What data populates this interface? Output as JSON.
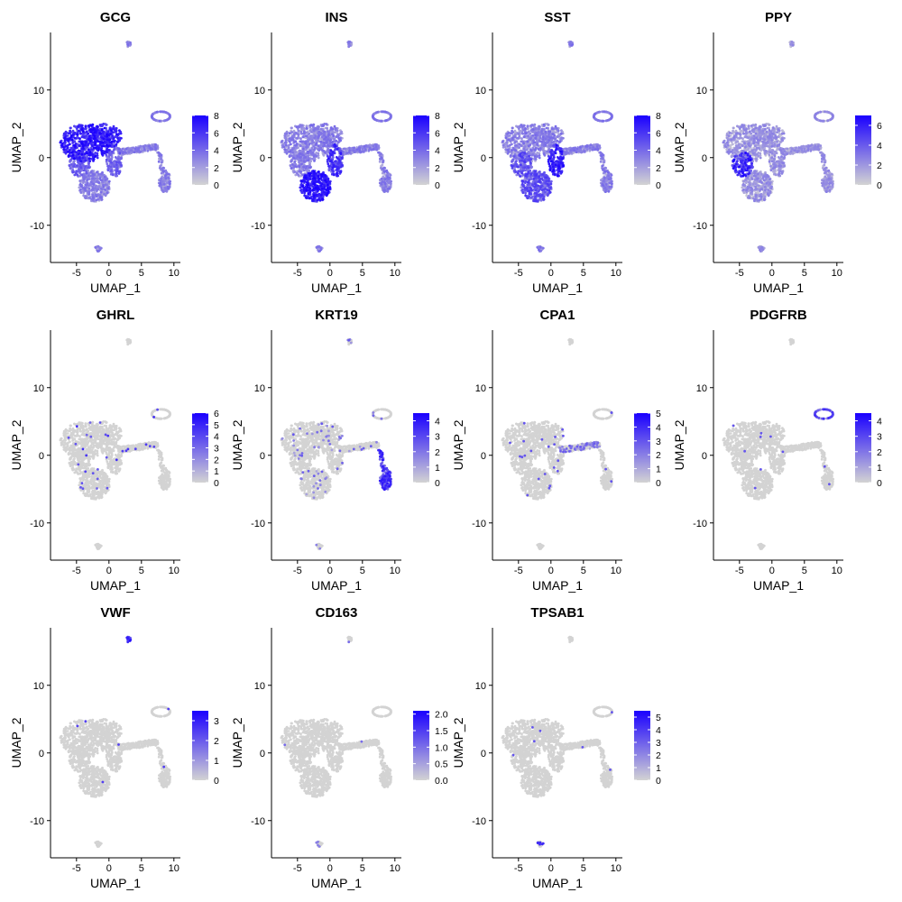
{
  "colors": {
    "low": "#d3d3d3",
    "high": "#1a00ff",
    "axis": "#000000"
  },
  "chart_data": [
    {
      "type": "scatter",
      "title": "GCG",
      "xlabel": "UMAP_1",
      "ylabel": "UMAP_2",
      "xlim": [
        -9,
        11
      ],
      "ylim": [
        -15.5,
        18.5
      ],
      "xticks": [
        -5,
        0,
        5,
        10
      ],
      "yticks": [
        -10,
        0,
        10
      ],
      "legend": {
        "max": 8,
        "ticks": [
          0,
          2,
          4,
          6,
          8
        ],
        "labels": [
          "0",
          "2",
          "4",
          "6",
          "8"
        ],
        "placement": "right"
      },
      "pattern": "gcg"
    },
    {
      "type": "scatter",
      "title": "INS",
      "xlabel": "UMAP_1",
      "ylabel": "UMAP_2",
      "xlim": [
        -9,
        11
      ],
      "ylim": [
        -15.5,
        18.5
      ],
      "xticks": [
        -5,
        0,
        5,
        10
      ],
      "yticks": [
        -10,
        0,
        10
      ],
      "legend": {
        "max": 8,
        "ticks": [
          0,
          2,
          4,
          6,
          8
        ],
        "labels": [
          "0",
          "2",
          "4",
          "6",
          "8"
        ],
        "placement": "right"
      },
      "pattern": "ins"
    },
    {
      "type": "scatter",
      "title": "SST",
      "xlabel": "UMAP_1",
      "ylabel": "UMAP_2",
      "xlim": [
        -9,
        11
      ],
      "ylim": [
        -15.5,
        18.5
      ],
      "xticks": [
        -5,
        0,
        5,
        10
      ],
      "yticks": [
        -10,
        0,
        10
      ],
      "legend": {
        "max": 8,
        "ticks": [
          0,
          2,
          4,
          6,
          8
        ],
        "labels": [
          "0",
          "2",
          "4",
          "6",
          "8"
        ],
        "placement": "right"
      },
      "pattern": "sst"
    },
    {
      "type": "scatter",
      "title": "PPY",
      "xlabel": "UMAP_1",
      "ylabel": "UMAP_2",
      "xlim": [
        -9,
        11
      ],
      "ylim": [
        -15.5,
        18.5
      ],
      "xticks": [
        -5,
        0,
        5,
        10
      ],
      "yticks": [
        -10,
        0,
        10
      ],
      "legend": {
        "max": 7,
        "ticks": [
          0,
          2,
          4,
          6
        ],
        "labels": [
          "0",
          "2",
          "4",
          "6"
        ],
        "placement": "right"
      },
      "pattern": "ppy"
    },
    {
      "type": "scatter",
      "title": "GHRL",
      "xlabel": "UMAP_1",
      "ylabel": "UMAP_2",
      "xlim": [
        -9,
        11
      ],
      "ylim": [
        -15.5,
        18.5
      ],
      "xticks": [
        -5,
        0,
        5,
        10
      ],
      "yticks": [
        -10,
        0,
        10
      ],
      "legend": {
        "max": 6,
        "ticks": [
          0,
          1,
          2,
          3,
          4,
          5,
          6
        ],
        "labels": [
          "0",
          "1",
          "2",
          "3",
          "4",
          "5",
          "6"
        ],
        "placement": "right"
      },
      "pattern": "ghrl"
    },
    {
      "type": "scatter",
      "title": "KRT19",
      "xlabel": "UMAP_1",
      "ylabel": "UMAP_2",
      "xlim": [
        -9,
        11
      ],
      "ylim": [
        -15.5,
        18.5
      ],
      "xticks": [
        -5,
        0,
        5,
        10
      ],
      "yticks": [
        -10,
        0,
        10
      ],
      "legend": {
        "max": 4.5,
        "ticks": [
          0,
          1,
          2,
          3,
          4
        ],
        "labels": [
          "0",
          "1",
          "2",
          "3",
          "4"
        ],
        "placement": "right"
      },
      "pattern": "krt19"
    },
    {
      "type": "scatter",
      "title": "CPA1",
      "xlabel": "UMAP_1",
      "ylabel": "UMAP_2",
      "xlim": [
        -9,
        11
      ],
      "ylim": [
        -15.5,
        18.5
      ],
      "xticks": [
        -5,
        0,
        5,
        10
      ],
      "yticks": [
        -10,
        0,
        10
      ],
      "legend": {
        "max": 5,
        "ticks": [
          0,
          1,
          2,
          3,
          4,
          5
        ],
        "labels": [
          "0",
          "1",
          "2",
          "3",
          "4",
          "5"
        ],
        "placement": "right"
      },
      "pattern": "cpa1"
    },
    {
      "type": "scatter",
      "title": "PDGFRB",
      "xlabel": "UMAP_1",
      "ylabel": "UMAP_2",
      "xlim": [
        -9,
        11
      ],
      "ylim": [
        -15.5,
        18.5
      ],
      "xticks": [
        -5,
        0,
        5,
        10
      ],
      "yticks": [
        -10,
        0,
        10
      ],
      "legend": {
        "max": 4.5,
        "ticks": [
          0,
          1,
          2,
          3,
          4
        ],
        "labels": [
          "0",
          "1",
          "2",
          "3",
          "4"
        ],
        "placement": "right"
      },
      "pattern": "pdgfrb"
    },
    {
      "type": "scatter",
      "title": "VWF",
      "xlabel": "UMAP_1",
      "ylabel": "UMAP_2",
      "xlim": [
        -9,
        11
      ],
      "ylim": [
        -15.5,
        18.5
      ],
      "xticks": [
        -5,
        0,
        5,
        10
      ],
      "yticks": [
        -10,
        0,
        10
      ],
      "legend": {
        "max": 3.5,
        "ticks": [
          0,
          1,
          2,
          3
        ],
        "labels": [
          "0",
          "1",
          "2",
          "3"
        ],
        "placement": "right"
      },
      "pattern": "vwf"
    },
    {
      "type": "scatter",
      "title": "CD163",
      "xlabel": "UMAP_1",
      "ylabel": "UMAP_2",
      "xlim": [
        -9,
        11
      ],
      "ylim": [
        -15.5,
        18.5
      ],
      "xticks": [
        -5,
        0,
        5,
        10
      ],
      "yticks": [
        -10,
        0,
        10
      ],
      "legend": {
        "max": 2.1,
        "ticks": [
          0,
          0.5,
          1,
          1.5,
          2
        ],
        "labels": [
          "0.0",
          "0.5",
          "1.0",
          "1.5",
          "2.0"
        ],
        "placement": "right"
      },
      "pattern": "cd163"
    },
    {
      "type": "scatter",
      "title": "TPSAB1",
      "xlabel": "UMAP_1",
      "ylabel": "UMAP_2",
      "xlim": [
        -9,
        11
      ],
      "ylim": [
        -15.5,
        18.5
      ],
      "xticks": [
        -5,
        0,
        5,
        10
      ],
      "yticks": [
        -10,
        0,
        10
      ],
      "legend": {
        "max": 5.5,
        "ticks": [
          0,
          1,
          2,
          3,
          4,
          5
        ],
        "labels": [
          "0",
          "1",
          "2",
          "3",
          "4",
          "5"
        ],
        "placement": "right"
      },
      "pattern": "tpsab1"
    }
  ]
}
